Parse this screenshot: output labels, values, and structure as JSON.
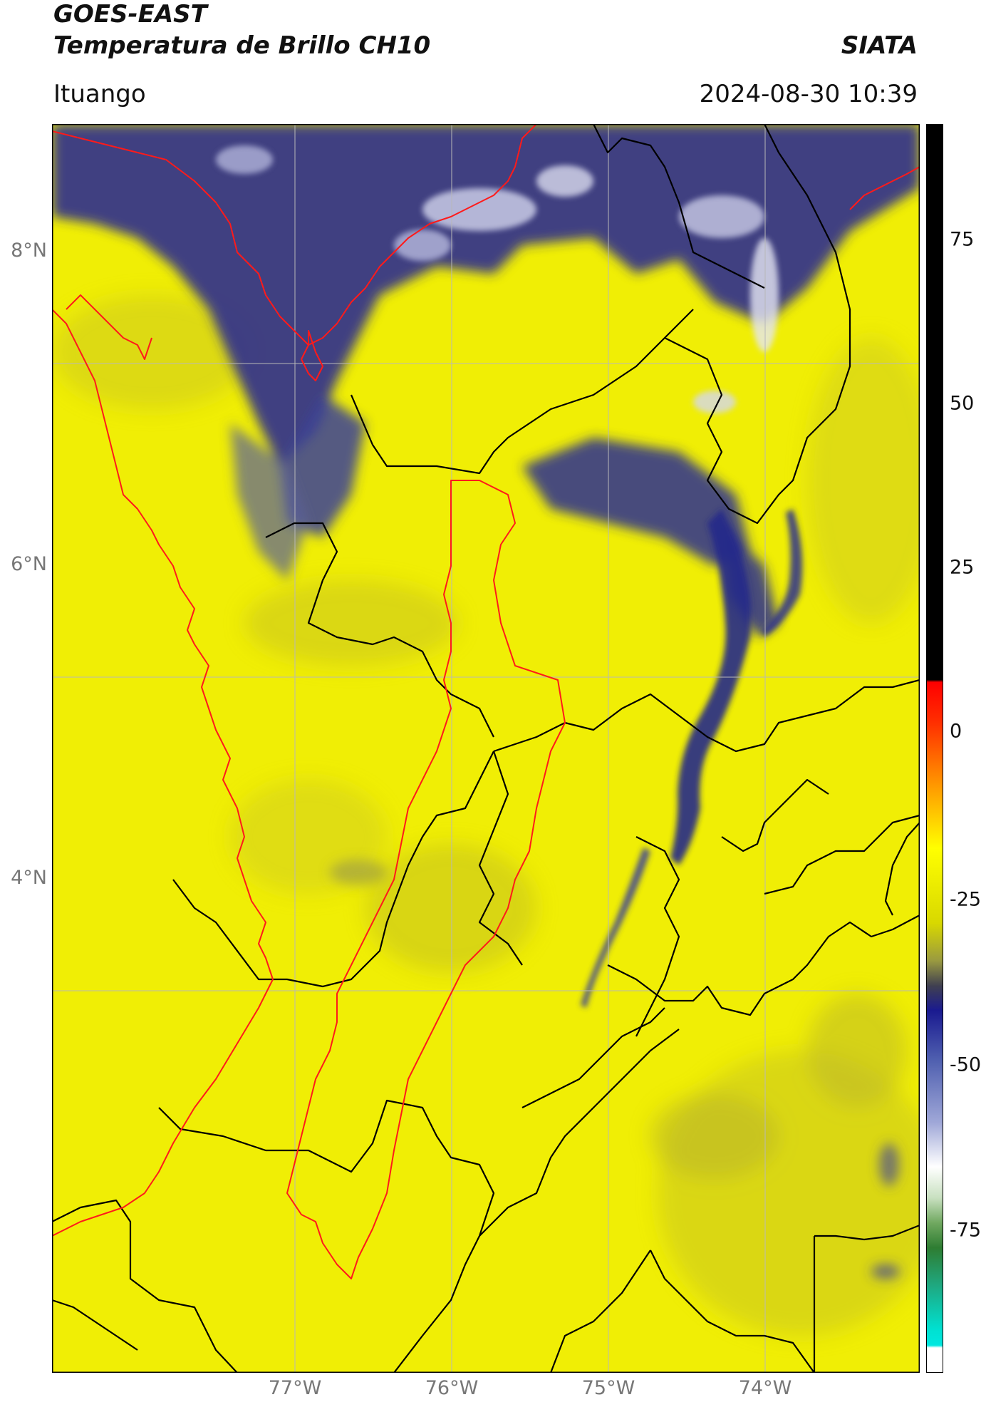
{
  "header": {
    "line1": "GOES-EAST",
    "line2": "Temperatura de Brillo CH10",
    "org": "SIATA",
    "region": "Ituango",
    "datetime": "2024-08-30 10:39"
  },
  "map": {
    "lat_labels": [
      "8°N",
      "6°N",
      "4°N"
    ],
    "lon_labels": [
      "77°W",
      "76°W",
      "75°W",
      "74°W"
    ],
    "lon_range": [
      -78.55,
      -73.0
    ],
    "lat_range": [
      1.25,
      9.5
    ],
    "colors": {
      "background": "#f2f000",
      "cloud_dark": "#1a237e",
      "cloud_mid": "#5c6bc0",
      "cloud_light": "#e8eaf6",
      "boundary_black": "#000000",
      "boundary_red": "#ff0000"
    }
  },
  "colorbar": {
    "labels": [
      "75",
      "50",
      "25",
      "0",
      "-25",
      "-50",
      "-75"
    ],
    "range": [
      -94,
      91
    ]
  }
}
